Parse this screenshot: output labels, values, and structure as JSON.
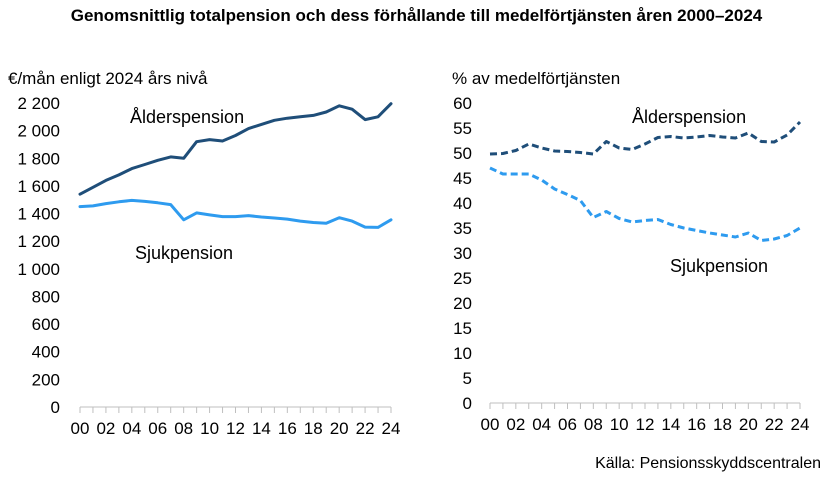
{
  "title": "Genomsnittlig totalpension och dess förhållande till medelförtjänsten åren 2000–2024",
  "source": "Källa: Pensionsskyddscentralen",
  "colors": {
    "alder": "#1F4E79",
    "sjuk": "#2E9BEF",
    "axis": "#BFBFBF"
  },
  "chart_data": [
    {
      "type": "line",
      "ylabel": "€/mån enligt 2024 års nivå",
      "ylim": [
        0,
        2200
      ],
      "yticks": [
        0,
        200,
        400,
        600,
        800,
        1000,
        1200,
        1400,
        1600,
        1800,
        2000,
        2200
      ],
      "ytick_labels": [
        "0",
        "200",
        "400",
        "600",
        "800",
        "1 000",
        "1 200",
        "1 400",
        "1 600",
        "1 800",
        "2 000",
        "2 200"
      ],
      "x": [
        "00",
        "01",
        "02",
        "03",
        "04",
        "05",
        "06",
        "07",
        "08",
        "09",
        "10",
        "11",
        "12",
        "13",
        "14",
        "15",
        "16",
        "17",
        "18",
        "19",
        "20",
        "21",
        "22",
        "23",
        "24"
      ],
      "xtick_labels": [
        "00",
        "02",
        "04",
        "06",
        "08",
        "10",
        "12",
        "14",
        "16",
        "18",
        "20",
        "22",
        "24"
      ],
      "series": [
        {
          "name": "Ålderspension",
          "style": "solid",
          "values": [
            1540,
            1590,
            1640,
            1680,
            1725,
            1755,
            1785,
            1810,
            1800,
            1920,
            1935,
            1925,
            1965,
            2015,
            2045,
            2075,
            2090,
            2100,
            2110,
            2135,
            2180,
            2155,
            2080,
            2100,
            2195
          ]
        },
        {
          "name": "Sjukpension",
          "style": "solid",
          "values": [
            1450,
            1455,
            1472,
            1485,
            1495,
            1488,
            1478,
            1465,
            1355,
            1405,
            1390,
            1378,
            1378,
            1385,
            1375,
            1368,
            1360,
            1345,
            1335,
            1330,
            1370,
            1345,
            1302,
            1300,
            1355
          ]
        }
      ]
    },
    {
      "type": "line",
      "ylabel": "% av medelförtjänsten",
      "ylim": [
        0,
        60
      ],
      "yticks": [
        0,
        5,
        10,
        15,
        20,
        25,
        30,
        35,
        40,
        45,
        50,
        55,
        60
      ],
      "ytick_labels": [
        "0",
        "5",
        "10",
        "15",
        "20",
        "25",
        "30",
        "35",
        "40",
        "45",
        "50",
        "55",
        "60"
      ],
      "x": [
        "00",
        "01",
        "02",
        "03",
        "04",
        "05",
        "06",
        "07",
        "08",
        "09",
        "10",
        "11",
        "12",
        "13",
        "14",
        "15",
        "16",
        "17",
        "18",
        "19",
        "20",
        "21",
        "22",
        "23",
        "24"
      ],
      "xtick_labels": [
        "00",
        "02",
        "04",
        "06",
        "08",
        "10",
        "12",
        "14",
        "16",
        "18",
        "20",
        "22",
        "24"
      ],
      "series": [
        {
          "name": "Ålderspension",
          "style": "dashed",
          "values": [
            49.8,
            49.9,
            50.5,
            51.8,
            51.0,
            50.4,
            50.3,
            50.1,
            49.8,
            52.3,
            51.0,
            50.7,
            51.8,
            53.1,
            53.3,
            53.0,
            53.2,
            53.5,
            53.2,
            53.0,
            54.0,
            52.3,
            52.2,
            53.6,
            56.2
          ]
        },
        {
          "name": "Sjukpension",
          "style": "dashed",
          "values": [
            47.0,
            45.8,
            45.8,
            45.8,
            44.6,
            42.8,
            41.7,
            40.5,
            37.1,
            38.3,
            36.9,
            36.2,
            36.5,
            36.7,
            35.7,
            35.0,
            34.5,
            34.0,
            33.6,
            33.2,
            34.0,
            32.5,
            32.8,
            33.5,
            35.0
          ]
        }
      ]
    }
  ]
}
